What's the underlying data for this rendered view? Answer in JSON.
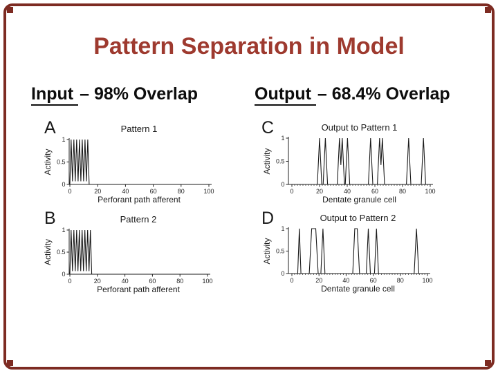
{
  "slide": {
    "title": "Pattern Separation in Model",
    "title_color": "#9e3a2f",
    "border_color": "#7d2b22",
    "background": "#ffffff"
  },
  "section_labels": {
    "input": {
      "underlined": "Input",
      "rest": "– 98% Overlap"
    },
    "output": {
      "underlined": "Output",
      "rest": "– 68.4% Overlap"
    }
  },
  "chart_data": [
    {
      "id": "A",
      "type": "line",
      "panel_letter": "A",
      "title": "Pattern 1",
      "xlabel": "Perforant path afferent",
      "ylabel": "Activity",
      "xlim": [
        0,
        100
      ],
      "ylim": [
        0,
        1
      ],
      "xticks": [
        0,
        20,
        40,
        60,
        80,
        100
      ],
      "yticks": [
        0,
        0.5,
        1
      ],
      "minor_xticks": false,
      "line_color": "#1a1a1a",
      "points": [
        [
          0,
          0
        ],
        [
          0.9,
          1
        ],
        [
          1.9,
          0.07
        ],
        [
          2.9,
          1
        ],
        [
          3.9,
          0.07
        ],
        [
          4.9,
          1
        ],
        [
          5.9,
          0.07
        ],
        [
          6.9,
          1
        ],
        [
          7.9,
          0.07
        ],
        [
          8.9,
          1
        ],
        [
          9.9,
          0.07
        ],
        [
          10.9,
          1
        ],
        [
          11.9,
          0.07
        ],
        [
          12.9,
          1
        ],
        [
          13.9,
          0
        ],
        [
          100,
          0
        ]
      ]
    },
    {
      "id": "B",
      "type": "line",
      "panel_letter": "B",
      "title": "Pattern 2",
      "xlabel": "Perforant path afferent",
      "ylabel": "Activity",
      "xlim": [
        0,
        100
      ],
      "ylim": [
        0,
        1
      ],
      "xticks": [
        0,
        20,
        40,
        60,
        80,
        100
      ],
      "yticks": [
        0,
        0.5,
        1
      ],
      "minor_xticks": false,
      "line_color": "#1a1a1a",
      "points": [
        [
          0,
          0
        ],
        [
          0.9,
          1
        ],
        [
          1.9,
          0.07
        ],
        [
          2.9,
          1
        ],
        [
          3.9,
          0.07
        ],
        [
          4.9,
          1
        ],
        [
          5.9,
          0.07
        ],
        [
          6.9,
          1
        ],
        [
          7.9,
          0.07
        ],
        [
          8.9,
          1
        ],
        [
          9.9,
          0.07
        ],
        [
          10.9,
          1
        ],
        [
          11.9,
          0.07
        ],
        [
          12.9,
          1
        ],
        [
          13.9,
          0.07
        ],
        [
          14.9,
          1
        ],
        [
          15.9,
          0
        ],
        [
          100,
          0
        ]
      ]
    },
    {
      "id": "C",
      "type": "line",
      "panel_letter": "C",
      "title": "Output to Pattern 1",
      "xlabel": "Dentate granule cell",
      "ylabel": "Activity",
      "xlim": [
        0,
        100
      ],
      "ylim": [
        0,
        1
      ],
      "xticks": [
        0,
        20,
        40,
        60,
        80,
        100
      ],
      "yticks": [
        0,
        0.5,
        1
      ],
      "minor_xticks": true,
      "line_color": "#1a1a1a",
      "points": [
        [
          0,
          0
        ],
        [
          18.4,
          0
        ],
        [
          20,
          1
        ],
        [
          21.6,
          0
        ],
        [
          22.6,
          0
        ],
        [
          24.2,
          1
        ],
        [
          25.8,
          0
        ],
        [
          32.8,
          0
        ],
        [
          34.4,
          1
        ],
        [
          35.4,
          0.42
        ],
        [
          36.4,
          1
        ],
        [
          38,
          0
        ],
        [
          38.6,
          0
        ],
        [
          40.2,
          1
        ],
        [
          41.8,
          0
        ],
        [
          55.3,
          0
        ],
        [
          56.9,
          1
        ],
        [
          58.5,
          0
        ],
        [
          61.8,
          0
        ],
        [
          63.4,
          1
        ],
        [
          64.4,
          0.42
        ],
        [
          65.4,
          1
        ],
        [
          67,
          0
        ],
        [
          82.8,
          0
        ],
        [
          84.4,
          1
        ],
        [
          86,
          0
        ],
        [
          93.5,
          0
        ],
        [
          95.1,
          1
        ],
        [
          96.7,
          0
        ],
        [
          100,
          0
        ]
      ]
    },
    {
      "id": "D",
      "type": "line",
      "panel_letter": "D",
      "title": "Output to Pattern 2",
      "xlabel": "Dentate granule cell",
      "ylabel": "Activity",
      "xlim": [
        0,
        100
      ],
      "ylim": [
        0,
        1
      ],
      "xticks": [
        0,
        20,
        40,
        60,
        80,
        100
      ],
      "yticks": [
        0,
        0.5,
        1
      ],
      "minor_xticks": true,
      "line_color": "#1a1a1a",
      "points": [
        [
          0,
          0
        ],
        [
          4.3,
          0
        ],
        [
          5.5,
          1
        ],
        [
          6.7,
          0
        ],
        [
          12.8,
          0
        ],
        [
          14.6,
          1
        ],
        [
          17.6,
          1
        ],
        [
          19.4,
          0
        ],
        [
          21.4,
          0
        ],
        [
          22.9,
          1
        ],
        [
          24.4,
          0
        ],
        [
          44.9,
          0
        ],
        [
          46.4,
          1
        ],
        [
          48.2,
          1
        ],
        [
          49.9,
          0
        ],
        [
          54.9,
          0
        ],
        [
          56.4,
          1
        ],
        [
          57.9,
          0
        ],
        [
          60.9,
          0
        ],
        [
          62.4,
          1
        ],
        [
          63.9,
          0
        ],
        [
          90.2,
          0
        ],
        [
          91.9,
          1
        ],
        [
          93.6,
          0
        ],
        [
          100,
          0
        ]
      ]
    }
  ]
}
